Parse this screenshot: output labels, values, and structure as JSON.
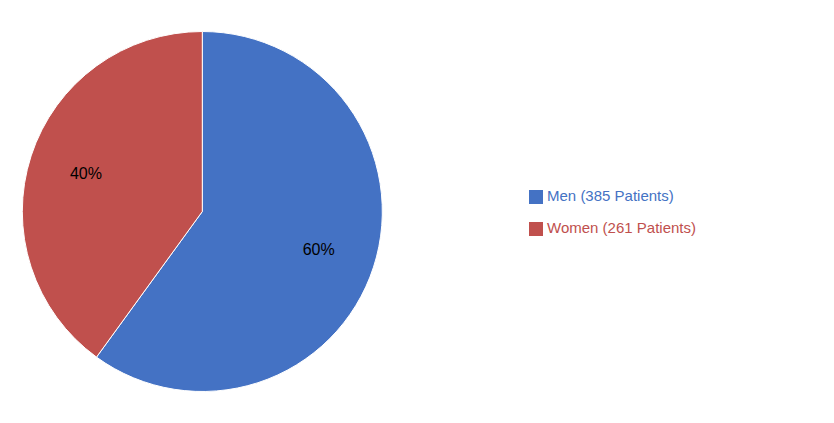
{
  "chart_data": {
    "type": "pie",
    "categories": [
      "Men (385 Patients)",
      "Women (261 Patients)"
    ],
    "values": [
      60,
      40
    ],
    "value_labels": [
      "60%",
      "40%"
    ],
    "colors": [
      "#4472C4",
      "#C0504D"
    ],
    "data_labels": true,
    "legend": "right"
  }
}
